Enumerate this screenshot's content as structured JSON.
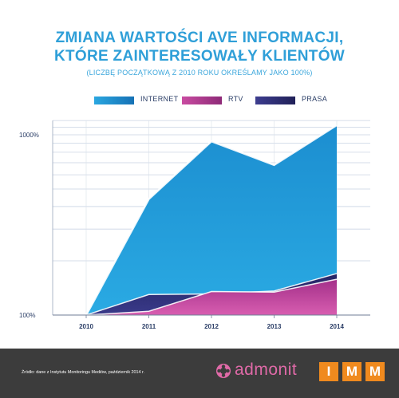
{
  "title": {
    "line1": "ZMIANA WARTOŚCI AVE INFORMACJI,",
    "line2": "KTÓRE ZAINTERESOWAŁY KLIENTÓW"
  },
  "subtitle": "(LICZBĘ POCZĄTKOWĄ Z 2010 ROKU OKREŚLAMY JAKO 100%)",
  "footer": {
    "source": "Źródło: dane z Instytutu Monitoringu Mediów, październik 2014 r.",
    "admonit_logo": "admonit",
    "imm_logo": [
      "I",
      "M",
      "M"
    ]
  },
  "colors": {
    "internet": "#1a8fcf",
    "rtv": "#b7378f",
    "prasa": "#2a2a6e",
    "title": "#2f9fd8",
    "footer_bg": "#3c3c3c"
  },
  "chart_data": {
    "type": "area",
    "x": [
      "2010",
      "2011",
      "2012",
      "2013",
      "2014"
    ],
    "y_scale": "log",
    "ylim": [
      100,
      1000
    ],
    "y_ticks": [
      "1000%",
      "100%"
    ],
    "legend_position": "top",
    "grid": true,
    "series": [
      {
        "name": "INTERNET",
        "values": [
          100,
          440,
          920,
          680,
          1130
        ]
      },
      {
        "name": "RTV",
        "values": [
          100,
          105,
          135,
          134,
          158
        ]
      },
      {
        "name": "PRASA",
        "values": [
          100,
          130,
          131,
          136,
          170
        ]
      }
    ]
  }
}
